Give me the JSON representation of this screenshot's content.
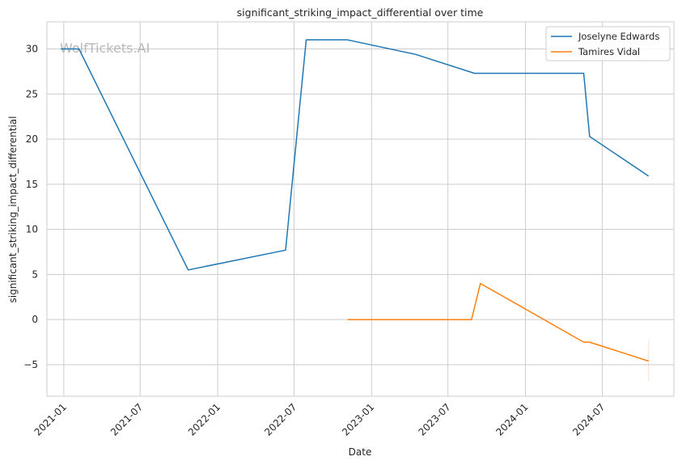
{
  "chart_data": {
    "type": "line",
    "title": "significant_striking_impact_differential over time",
    "xlabel": "Date",
    "ylabel": "significant_striking_impact_differential",
    "watermark": "WolfTickets.AI",
    "xlim": [
      "2020-11-22",
      "2024-12-18"
    ],
    "ylim": [
      -8.5,
      33
    ],
    "x_ticks": [
      "2021-01-01",
      "2021-07-01",
      "2022-01-01",
      "2022-07-01",
      "2023-01-01",
      "2023-07-01",
      "2024-01-01",
      "2024-07-01"
    ],
    "x_tick_labels": [
      "2021-01",
      "2021-07",
      "2022-01",
      "2022-07",
      "2023-01",
      "2023-07",
      "2024-01",
      "2024-07"
    ],
    "y_ticks": [
      -5,
      0,
      5,
      10,
      15,
      20,
      25,
      30
    ],
    "y_tick_labels": [
      "−5",
      "0",
      "5",
      "10",
      "15",
      "20",
      "25",
      "30"
    ],
    "grid": true,
    "legend_position": "top-right",
    "series": [
      {
        "name": "Joselyne Edwards",
        "color": "#1f77b4",
        "points": [
          {
            "x": "2020-12-25",
            "y": 30.0
          },
          {
            "x": "2021-02-06",
            "y": 30.0
          },
          {
            "x": "2021-10-23",
            "y": 5.5
          },
          {
            "x": "2022-06-11",
            "y": 7.7
          },
          {
            "x": "2022-07-30",
            "y": 31.0
          },
          {
            "x": "2022-11-05",
            "y": 31.0
          },
          {
            "x": "2023-04-15",
            "y": 29.4
          },
          {
            "x": "2023-09-02",
            "y": 27.3
          },
          {
            "x": "2024-05-18",
            "y": 27.3
          },
          {
            "x": "2024-06-01",
            "y": 20.3
          },
          {
            "x": "2024-10-19",
            "y": 15.9
          }
        ]
      },
      {
        "name": "Tamires Vidal",
        "color": "#ff7f0e",
        "points": [
          {
            "x": "2022-11-05",
            "y": 0.0
          },
          {
            "x": "2023-08-26",
            "y": 0.0
          },
          {
            "x": "2023-09-16",
            "y": 4.0
          },
          {
            "x": "2024-05-18",
            "y": -2.5
          },
          {
            "x": "2024-06-01",
            "y": -2.5
          },
          {
            "x": "2024-10-19",
            "y": -4.6
          }
        ],
        "band": [
          {
            "x": "2024-10-19",
            "low": -6.8,
            "high": -2.3
          }
        ]
      }
    ]
  }
}
